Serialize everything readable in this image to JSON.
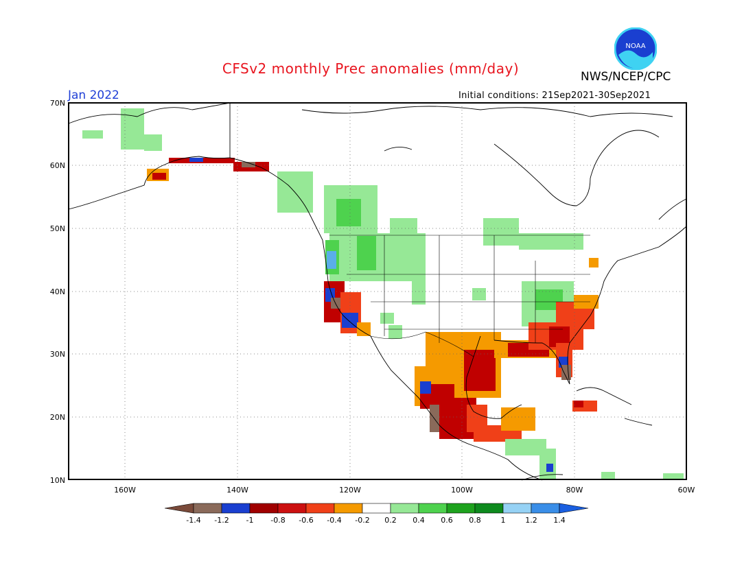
{
  "header": {
    "title": "CFSv2 monthly Prec anomalies (mm/day)",
    "org": "NWS/NCEP/CPC",
    "logo_text": "NOAA",
    "month": "Jan 2022",
    "initial_conditions": "Initial conditions: 21Sep2021-30Sep2021"
  },
  "axes": {
    "lat_labels": [
      "70N",
      "60N",
      "50N",
      "40N",
      "30N",
      "20N",
      "10N"
    ],
    "lon_labels": [
      "160W",
      "140W",
      "120W",
      "100W",
      "80W",
      "60W"
    ]
  },
  "colorbar": {
    "labels": [
      "-1.4",
      "-1.2",
      "-1",
      "-0.8",
      "-0.6",
      "-0.4",
      "-0.2",
      "0.2",
      "0.4",
      "0.6",
      "0.8",
      "1",
      "1.2",
      "1.4"
    ],
    "colors": [
      "#7a4a3a",
      "#8a6a5a",
      "#1a3fd0",
      "#a00000",
      "#cc1010",
      "#f04018",
      "#f59a00",
      "#ffffff",
      "#96e896",
      "#4ed24e",
      "#1ea21e",
      "#0e8a1e",
      "#96d2f5",
      "#3a8ee8",
      "#1a5fe0"
    ]
  },
  "anomaly_colors": {
    "strong_dry": "#8a6a5a",
    "very_dry": "#1a3fd0",
    "dry_red": "#c00000",
    "dry_orange_red": "#f04018",
    "dry_orange": "#f59a00",
    "wet_light": "#96e896",
    "wet_mid": "#4ed24e",
    "wet_blue": "#5aaee8"
  }
}
